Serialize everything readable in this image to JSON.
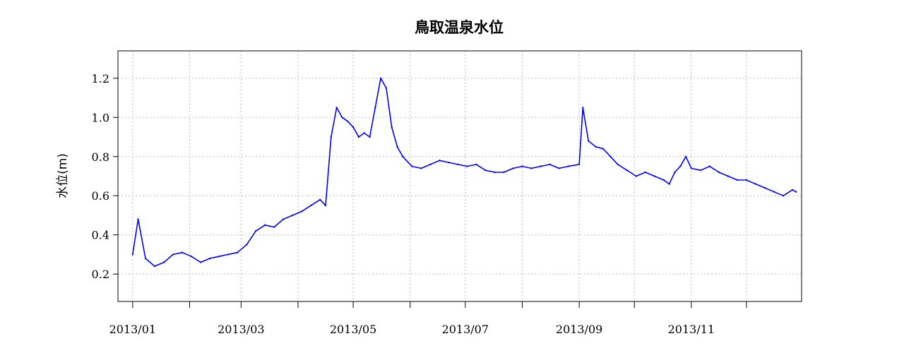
{
  "chart_data": {
    "type": "line",
    "title": "鳥取温泉水位",
    "ylabel": "水位(m)",
    "xlabel": "",
    "xlim": [
      "2012-12-24",
      "2013-12-31"
    ],
    "ylim": [
      0.06,
      1.34
    ],
    "grid": true,
    "legend": "none",
    "line_color": "#0000ff",
    "y_ticks": [
      0.2,
      0.4,
      0.6,
      0.8,
      1.0,
      1.2
    ],
    "y_tick_labels": [
      "0.2",
      "0.4",
      "0.6",
      "0.8",
      "1.0",
      "1.2"
    ],
    "x_ticks": [
      "2013-01-01",
      "2013-02-01",
      "2013-03-01",
      "2013-04-01",
      "2013-05-01",
      "2013-06-01",
      "2013-07-01",
      "2013-08-01",
      "2013-09-01",
      "2013-10-01",
      "2013-11-01",
      "2013-12-01"
    ],
    "x_tick_labels": [
      "2013/01",
      "",
      "2013/03",
      "",
      "2013/05",
      "",
      "2013/07",
      "",
      "2013/09",
      "",
      "2013/11",
      ""
    ],
    "series": [
      {
        "x": [
          "2013-01-01",
          "2013-01-04",
          "2013-01-08",
          "2013-01-13",
          "2013-01-18",
          "2013-01-23",
          "2013-01-28",
          "2013-02-02",
          "2013-02-07",
          "2013-02-12",
          "2013-02-17",
          "2013-02-22",
          "2013-02-27",
          "2013-03-04",
          "2013-03-09",
          "2013-03-14",
          "2013-03-19",
          "2013-03-24",
          "2013-03-29",
          "2013-04-03",
          "2013-04-08",
          "2013-04-13",
          "2013-04-16",
          "2013-04-19",
          "2013-04-22",
          "2013-04-25",
          "2013-04-28",
          "2013-05-01",
          "2013-05-04",
          "2013-05-07",
          "2013-05-10",
          "2013-05-13",
          "2013-05-16",
          "2013-05-19",
          "2013-05-22",
          "2013-05-25",
          "2013-05-28",
          "2013-06-02",
          "2013-06-07",
          "2013-06-12",
          "2013-06-17",
          "2013-06-22",
          "2013-06-27",
          "2013-07-02",
          "2013-07-07",
          "2013-07-12",
          "2013-07-17",
          "2013-07-22",
          "2013-07-27",
          "2013-08-01",
          "2013-08-06",
          "2013-08-11",
          "2013-08-16",
          "2013-08-21",
          "2013-08-26",
          "2013-09-01",
          "2013-09-03",
          "2013-09-06",
          "2013-09-10",
          "2013-09-14",
          "2013-09-18",
          "2013-09-22",
          "2013-09-27",
          "2013-10-02",
          "2013-10-07",
          "2013-10-12",
          "2013-10-17",
          "2013-10-20",
          "2013-10-23",
          "2013-10-26",
          "2013-10-29",
          "2013-11-01",
          "2013-11-06",
          "2013-11-11",
          "2013-11-16",
          "2013-11-21",
          "2013-11-26",
          "2013-12-01",
          "2013-12-06",
          "2013-12-11",
          "2013-12-16",
          "2013-12-21",
          "2013-12-26",
          "2013-12-28"
        ],
        "values": [
          0.3,
          0.48,
          0.28,
          0.24,
          0.26,
          0.3,
          0.31,
          0.29,
          0.26,
          0.28,
          0.29,
          0.3,
          0.31,
          0.35,
          0.42,
          0.45,
          0.44,
          0.48,
          0.5,
          0.52,
          0.55,
          0.58,
          0.55,
          0.9,
          1.05,
          1.0,
          0.98,
          0.95,
          0.9,
          0.92,
          0.9,
          1.05,
          1.2,
          1.15,
          0.95,
          0.85,
          0.8,
          0.75,
          0.74,
          0.76,
          0.78,
          0.77,
          0.76,
          0.75,
          0.76,
          0.73,
          0.72,
          0.72,
          0.74,
          0.75,
          0.74,
          0.75,
          0.76,
          0.74,
          0.75,
          0.76,
          1.05,
          0.88,
          0.85,
          0.84,
          0.8,
          0.76,
          0.73,
          0.7,
          0.72,
          0.7,
          0.68,
          0.66,
          0.72,
          0.75,
          0.8,
          0.74,
          0.73,
          0.75,
          0.72,
          0.7,
          0.68,
          0.68,
          0.66,
          0.64,
          0.62,
          0.6,
          0.63,
          0.62
        ]
      }
    ]
  }
}
